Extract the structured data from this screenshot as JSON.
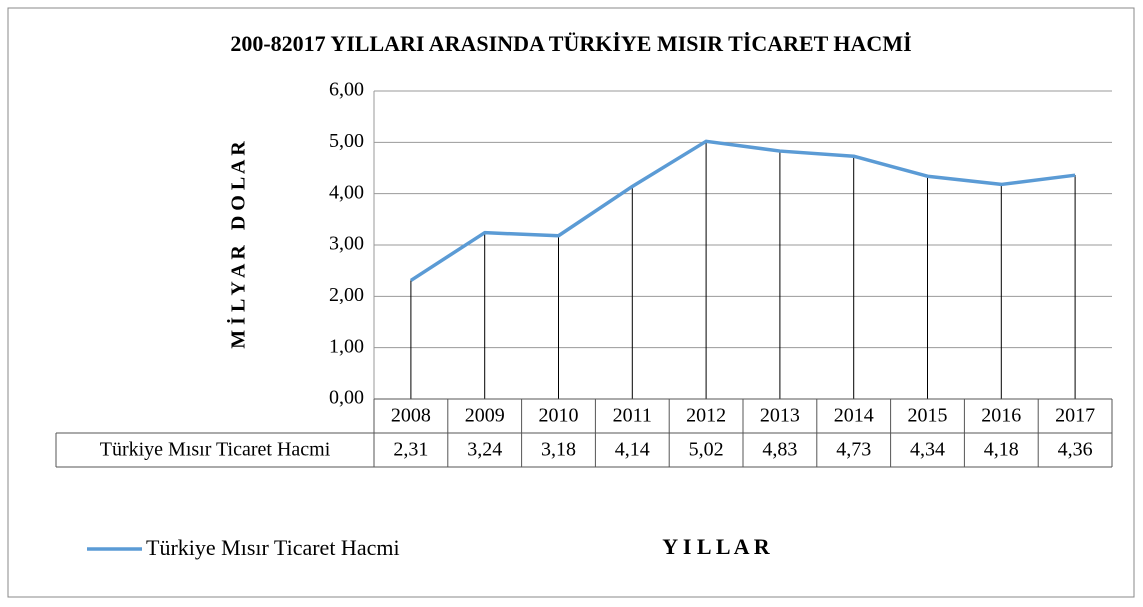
{
  "chart_data": {
    "type": "line",
    "title": "200-82017 YILLARI ARASINDA TÜRKİYE MISIR TİCARET HACMİ",
    "y_label": "M İ L Y A R   D O L A R",
    "x_label": "Y I L L A R",
    "categories": [
      "2008",
      "2009",
      "2010",
      "2011",
      "2012",
      "2013",
      "2014",
      "2015",
      "2016",
      "2017"
    ],
    "series": [
      {
        "name": "Türkiye Mısır Ticaret Hacmi",
        "color": "#5b9bd5",
        "values": [
          2.31,
          3.24,
          3.18,
          4.14,
          5.02,
          4.83,
          4.73,
          4.34,
          4.18,
          4.36
        ],
        "value_labels": [
          "2,31",
          "3,24",
          "3,18",
          "4,14",
          "5,02",
          "4,83",
          "4,73",
          "4,34",
          "4,18",
          "4,36"
        ]
      }
    ],
    "ylim": [
      0,
      6
    ],
    "yticks": [
      {
        "value": 0,
        "label": "0,00"
      },
      {
        "value": 1,
        "label": "1,00"
      },
      {
        "value": 2,
        "label": "2,00"
      },
      {
        "value": 3,
        "label": "3,00"
      },
      {
        "value": 4,
        "label": "4,00"
      },
      {
        "value": 5,
        "label": "5,00"
      },
      {
        "value": 6,
        "label": "6,00"
      }
    ],
    "grid": true,
    "drop_lines": true,
    "data_table": true,
    "legend": "bottom-left"
  }
}
